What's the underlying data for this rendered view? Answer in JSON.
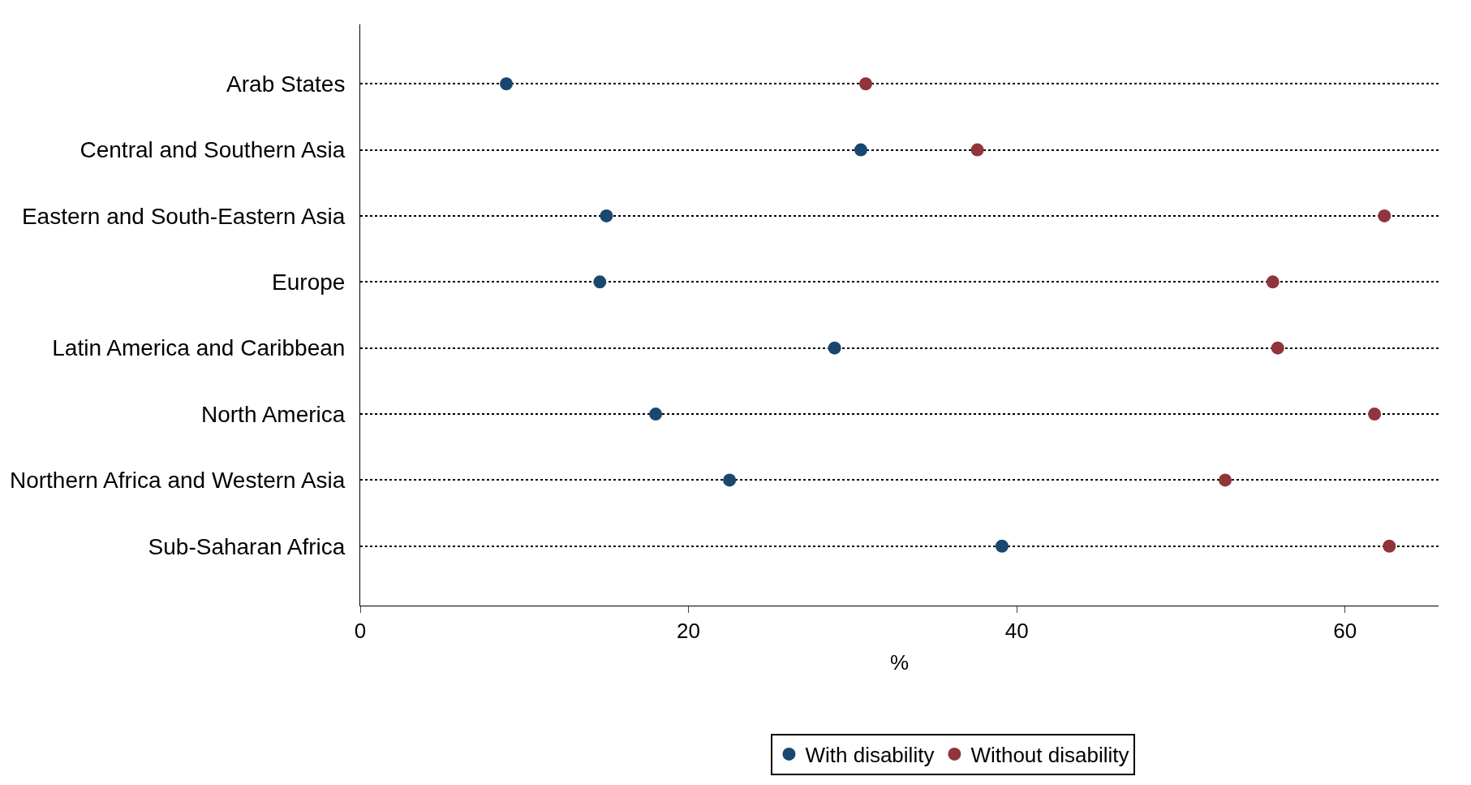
{
  "chart_data": {
    "type": "scatter",
    "xlabel": "%",
    "categories": [
      "Arab States",
      "Central and Southern Asia",
      "Eastern and South-Eastern Asia",
      "Europe",
      "Latin America and Caribbean",
      "North America",
      "Northern Africa and Western Asia",
      "Sub-Saharan Africa"
    ],
    "orientation": "horizontal",
    "series": [
      {
        "name": "With disability",
        "color": "#1a476f",
        "values": [
          8.9,
          30.5,
          15.0,
          14.6,
          28.9,
          18.0,
          22.5,
          39.1
        ]
      },
      {
        "name": "Without disability",
        "color": "#90353b",
        "values": [
          30.8,
          37.6,
          62.4,
          55.6,
          55.9,
          61.8,
          52.7,
          62.7
        ]
      }
    ],
    "xlim": [
      0,
      65.7
    ],
    "xticks": [
      0,
      20,
      40,
      60
    ],
    "grid": "y",
    "legend": "bottom",
    "marker": "circle"
  }
}
